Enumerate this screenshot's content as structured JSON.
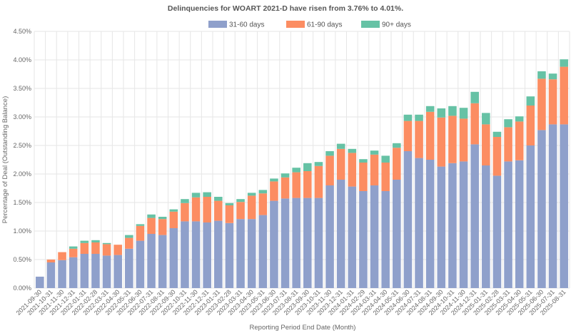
{
  "chart_data": {
    "type": "bar",
    "stacked": true,
    "title": "Delinquencies for WOART 2021-D have risen from 3.76% to 4.01%.",
    "xlabel": "Reporting Period End Date (Month)",
    "ylabel": "Percentage of Deal (Outstanding Balance)",
    "ylim": [
      0,
      4.5
    ],
    "yticks": [
      "0.00%",
      "0.50%",
      "1.00%",
      "1.50%",
      "2.00%",
      "2.50%",
      "3.00%",
      "3.50%",
      "4.00%",
      "4.50%"
    ],
    "ytick_values": [
      0,
      0.5,
      1.0,
      1.5,
      2.0,
      2.5,
      3.0,
      3.5,
      4.0,
      4.5
    ],
    "legend_position": "top-center",
    "categories": [
      "2021-09-30",
      "2021-10-31",
      "2021-11-30",
      "2021-12-31",
      "2022-01-31",
      "2022-02-28",
      "2022-03-31",
      "2022-04-30",
      "2022-05-31",
      "2022-06-30",
      "2022-07-31",
      "2022-08-31",
      "2022-09-30",
      "2022-10-31",
      "2022-11-30",
      "2022-12-31",
      "2023-01-31",
      "2023-02-28",
      "2023-03-31",
      "2023-04-30",
      "2023-05-31",
      "2023-06-30",
      "2023-07-31",
      "2023-08-31",
      "2023-09-30",
      "2023-10-31",
      "2023-11-30",
      "2023-12-31",
      "2024-01-31",
      "2024-02-29",
      "2024-03-31",
      "2024-04-30",
      "2024-05-31",
      "2024-06-30",
      "2024-07-31",
      "2024-08-31",
      "2024-09-30",
      "2024-10-31",
      "2024-11-30",
      "2024-12-31",
      "2025-01-31",
      "2025-02-28",
      "2025-03-31",
      "2025-04-30",
      "2025-05-31",
      "2025-06-30",
      "2025-07-31",
      "2025-08-31"
    ],
    "series": [
      {
        "name": "31-60 days",
        "color": "#8fa0cb",
        "values": [
          0.2,
          0.45,
          0.49,
          0.54,
          0.6,
          0.6,
          0.57,
          0.58,
          0.69,
          0.83,
          0.95,
          0.93,
          1.05,
          1.17,
          1.17,
          1.15,
          1.18,
          1.14,
          1.21,
          1.21,
          1.28,
          1.53,
          1.57,
          1.58,
          1.58,
          1.58,
          1.8,
          1.9,
          1.78,
          1.7,
          1.8,
          1.7,
          1.9,
          2.4,
          2.28,
          2.25,
          2.13,
          2.19,
          2.22,
          2.52,
          2.15,
          1.97,
          2.22,
          2.24,
          2.5,
          2.77,
          2.87,
          2.87
        ]
      },
      {
        "name": "61-90 days",
        "color": "#fc8d62",
        "values": [
          0.0,
          0.05,
          0.14,
          0.15,
          0.19,
          0.2,
          0.2,
          0.18,
          0.19,
          0.26,
          0.28,
          0.28,
          0.29,
          0.32,
          0.42,
          0.45,
          0.35,
          0.31,
          0.3,
          0.41,
          0.38,
          0.34,
          0.37,
          0.45,
          0.47,
          0.56,
          0.52,
          0.54,
          0.59,
          0.5,
          0.54,
          0.5,
          0.56,
          0.53,
          0.65,
          0.84,
          0.86,
          0.83,
          0.75,
          0.72,
          0.72,
          0.68,
          0.6,
          0.68,
          0.7,
          0.9,
          0.79,
          1.01
        ]
      },
      {
        "name": "90+ days",
        "color": "#66c2a5",
        "values": [
          0.0,
          0.0,
          0.0,
          0.04,
          0.04,
          0.04,
          0.02,
          0.0,
          0.05,
          0.03,
          0.06,
          0.04,
          0.04,
          0.07,
          0.08,
          0.08,
          0.07,
          0.04,
          0.05,
          0.05,
          0.06,
          0.05,
          0.07,
          0.08,
          0.14,
          0.07,
          0.08,
          0.09,
          0.07,
          0.06,
          0.07,
          0.12,
          0.08,
          0.11,
          0.11,
          0.1,
          0.16,
          0.17,
          0.19,
          0.2,
          0.2,
          0.09,
          0.14,
          0.09,
          0.16,
          0.13,
          0.1,
          0.13
        ]
      }
    ]
  }
}
